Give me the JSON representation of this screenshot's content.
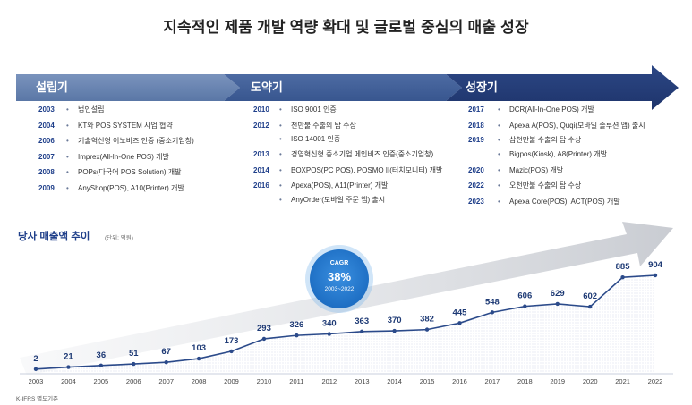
{
  "title": "지속적인 제품 개발 역량 확대 및 글로벌 중심의 매출 성장",
  "stages": [
    {
      "label": "설립기",
      "color": "#5f7ba8"
    },
    {
      "label": "도약기",
      "color": "#3f5d96"
    },
    {
      "label": "성장기",
      "color": "#243c78"
    }
  ],
  "timeline": {
    "col1": [
      {
        "year": "2003",
        "text": "법인설립"
      },
      {
        "year": "2004",
        "text": "KT와 POS SYSTEM 사업 협약"
      },
      {
        "year": "2006",
        "text": "기술혁신형 이노비즈 인증 (중소기업청)"
      },
      {
        "year": "2007",
        "text": "Imprex(All-In-One POS) 개발"
      },
      {
        "year": "2008",
        "text": "POPs(다국어 POS Solution) 개발"
      },
      {
        "year": "2009",
        "text": "AnyShop(POS), A10(Printer) 개발"
      }
    ],
    "col2": [
      {
        "year": "2010",
        "text": "ISO 9001 인증"
      },
      {
        "year": "2012",
        "text": "천만불 수출의 탑 수상"
      },
      {
        "year": "",
        "text": "ISO 14001 인증"
      },
      {
        "year": "2013",
        "text": "경영혁신형 중소기업 메인비즈 인증(중소기업청)"
      },
      {
        "year": "2014",
        "text": "BOXPOS(PC POS), POSMO II(터치모니터) 개발"
      },
      {
        "year": "2016",
        "text": "Apexa(POS), A11(Printer) 개발"
      },
      {
        "year": "",
        "text": "AnyOrder(모바일 주문 앱) 출시"
      }
    ],
    "col3": [
      {
        "year": "2017",
        "text": "DCR(All-In-One POS) 개발"
      },
      {
        "year": "2018",
        "text": "Apexa A(POS), Quqi(모바일 솔루션 앱) 출시"
      },
      {
        "year": "2019",
        "text": "삼천만불 수출의 탑 수상"
      },
      {
        "year": "",
        "text": "Bigpos(Kiosk), A8(Printer) 개발"
      },
      {
        "year": "2020",
        "text": "Mazic(POS) 개발"
      },
      {
        "year": "2022",
        "text": "오천만불 수출의 탑 수상"
      },
      {
        "year": "2023",
        "text": "Apexa Core(POS), ACT(POS) 개발"
      }
    ]
  },
  "sales_title": "당사 매출액 추이",
  "sales_unit": "(단위: 억원)",
  "cagr": {
    "label": "CAGR",
    "value": "38%",
    "period": "2003~2022"
  },
  "footnote": "K-IFRS 별도기준",
  "chart_data": {
    "type": "line",
    "x": [
      "2003",
      "2004",
      "2005",
      "2006",
      "2007",
      "2008",
      "2009",
      "2010",
      "2011",
      "2012",
      "2013",
      "2014",
      "2015",
      "2016",
      "2017",
      "2018",
      "2019",
      "2020",
      "2021",
      "2022"
    ],
    "values": [
      2,
      21,
      36,
      51,
      67,
      103,
      173,
      293,
      326,
      340,
      363,
      370,
      382,
      445,
      548,
      606,
      629,
      602,
      885,
      904
    ],
    "line_color": "#2b4a8a",
    "ylabel": "",
    "xlabel": ""
  }
}
